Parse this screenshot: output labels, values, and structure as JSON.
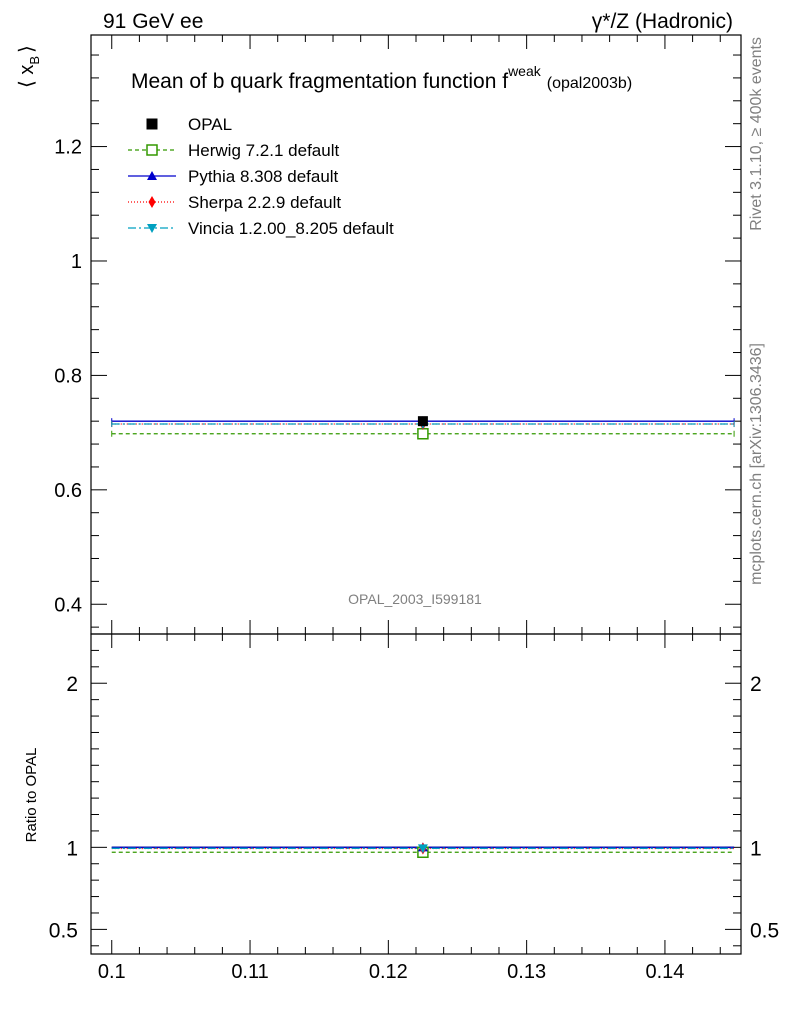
{
  "header": {
    "left_label": "91 GeV ee",
    "right_label": "γ*/Z (Hadronic)"
  },
  "side_labels": {
    "rivet": "Rivet 3.1.10, ≥ 400k events",
    "mcplots": "mcplots.cern.ch [arXiv:1306.3436]"
  },
  "chart_data": {
    "type": "line",
    "title": "Mean of b quark fragmentation function f",
    "title_superscript": "weak",
    "title_suffix": "(opal2003b)",
    "watermark": "OPAL_2003_I599181",
    "xlim": [
      0.0985,
      0.1455
    ],
    "x_ticks": [
      0.1,
      0.11,
      0.12,
      0.13,
      0.14
    ],
    "x_tick_labels": [
      "0.1",
      "0.11",
      "0.12",
      "0.13",
      "0.14"
    ],
    "main": {
      "ylabel": "⟨ x",
      "ylabel_sub": "B",
      "ylabel_tail": "⟩",
      "ylim": [
        0.348,
        1.395
      ],
      "y_ticks": [
        0.4,
        0.6,
        0.8,
        1.0,
        1.2
      ],
      "y_tick_labels": [
        "0.4",
        "0.6",
        "0.8",
        "1",
        "1.2"
      ]
    },
    "ratio": {
      "ylabel": "Ratio to OPAL",
      "ylim": [
        0.35,
        2.3
      ],
      "y_ticks": [
        0.5,
        1,
        2
      ],
      "y_tick_labels": [
        "0.5",
        "1",
        "2"
      ]
    },
    "bin": {
      "x_low": 0.1,
      "x_high": 0.145,
      "x_center": 0.1225
    },
    "data_point": {
      "name": "OPAL",
      "x": 0.1225,
      "y": 0.72
    },
    "series": [
      {
        "name": "Herwig 7.2.1 default",
        "y": 0.698,
        "ratio": 0.97,
        "color": "#339900",
        "dash": "4,3",
        "marker": "open-square"
      },
      {
        "name": "Pythia 8.308 default",
        "y": 0.72,
        "ratio": 1.0,
        "color": "#0000cc",
        "dash": "",
        "marker": "triangle-up"
      },
      {
        "name": "Sherpa 2.2.9 default",
        "y": 0.715,
        "ratio": 0.993,
        "color": "#ff0000",
        "dash": "1,2",
        "marker": "diamond"
      },
      {
        "name": "Vincia 1.2.00_8.205 default",
        "y": 0.715,
        "ratio": 0.994,
        "color": "#00a0c0",
        "dash": "8,3,2,3",
        "marker": "triangle-down"
      }
    ]
  }
}
